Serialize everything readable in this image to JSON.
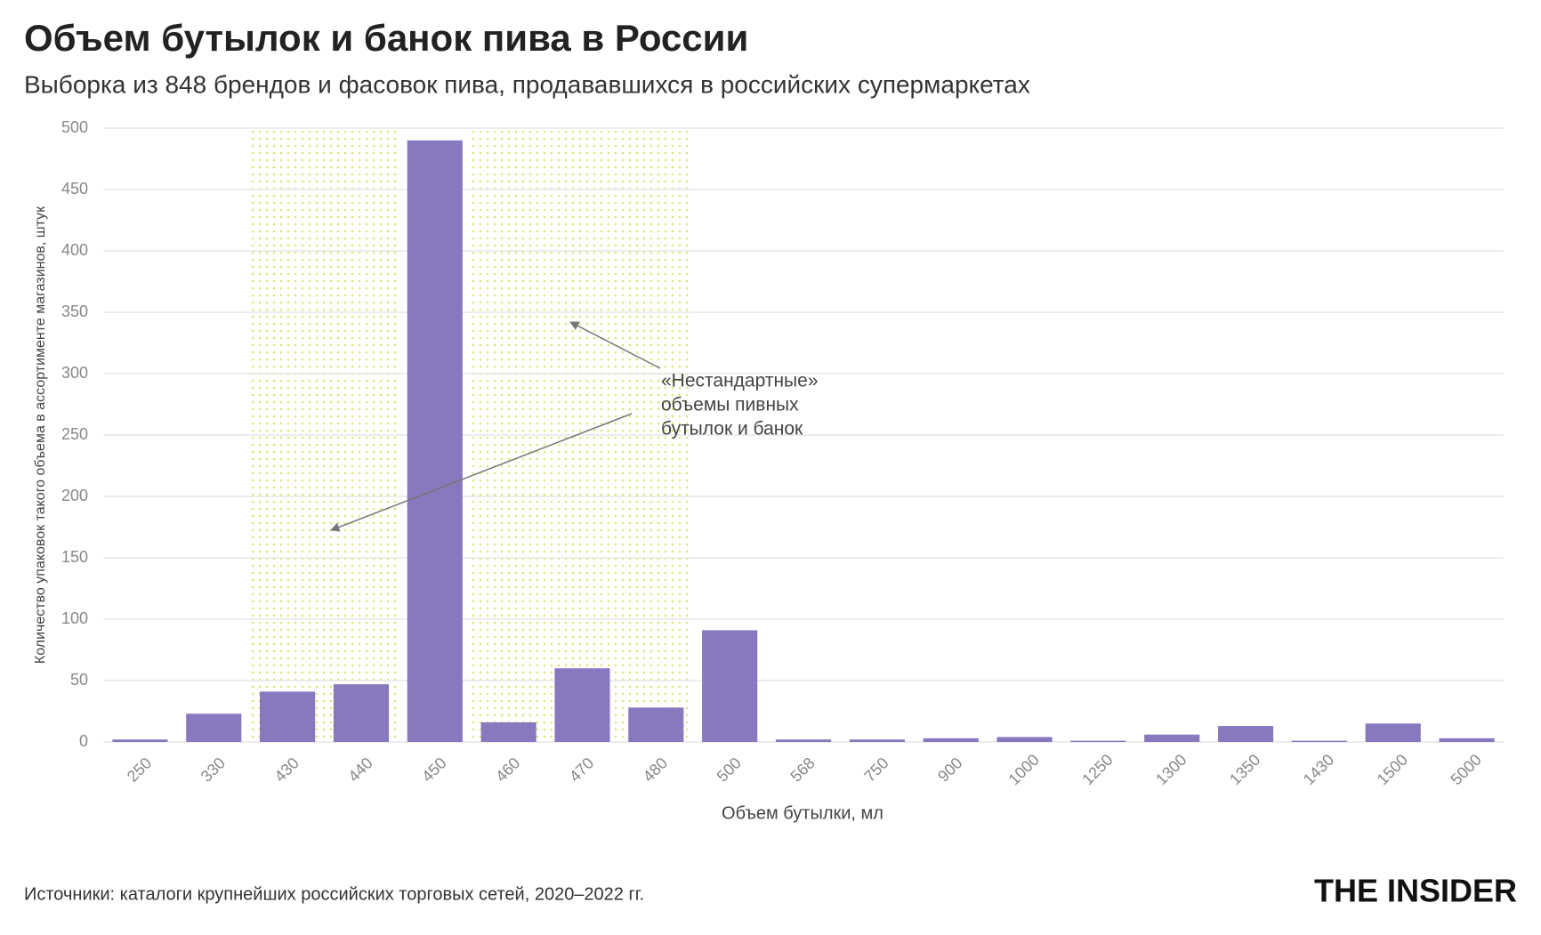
{
  "chart_data": {
    "type": "bar",
    "title": "Объем бутылок и банок пива в России",
    "subtitle": "Выборка из 848 брендов и фасовок пива, продававшихся в российских супермаркетах",
    "x_label": "Объем бутылки, мл",
    "y_label": "Количество упаковок такого объема в ассортименте магазинов, штук",
    "categories": [
      "250",
      "330",
      "430",
      "440",
      "450",
      "460",
      "470",
      "480",
      "500",
      "568",
      "750",
      "900",
      "1000",
      "1250",
      "1300",
      "1350",
      "1430",
      "1500",
      "5000"
    ],
    "values": [
      2,
      23,
      41,
      47,
      490,
      16,
      60,
      28,
      91,
      2,
      2,
      3,
      4,
      1,
      6,
      13,
      1,
      15,
      3
    ],
    "color": "#8878be",
    "ylim": [
      0,
      500
    ],
    "yticks": [
      0,
      50,
      100,
      150,
      200,
      250,
      300,
      350,
      400,
      450,
      500
    ],
    "grid": true,
    "annotation": [
      "«Нестандартные»",
      "объемы пивных",
      "бутылок и банок"
    ],
    "source": "Источники: каталоги крупнейших российских торговых сетей, 2020–2022 гг.",
    "logo": "THE INSIDER"
  }
}
